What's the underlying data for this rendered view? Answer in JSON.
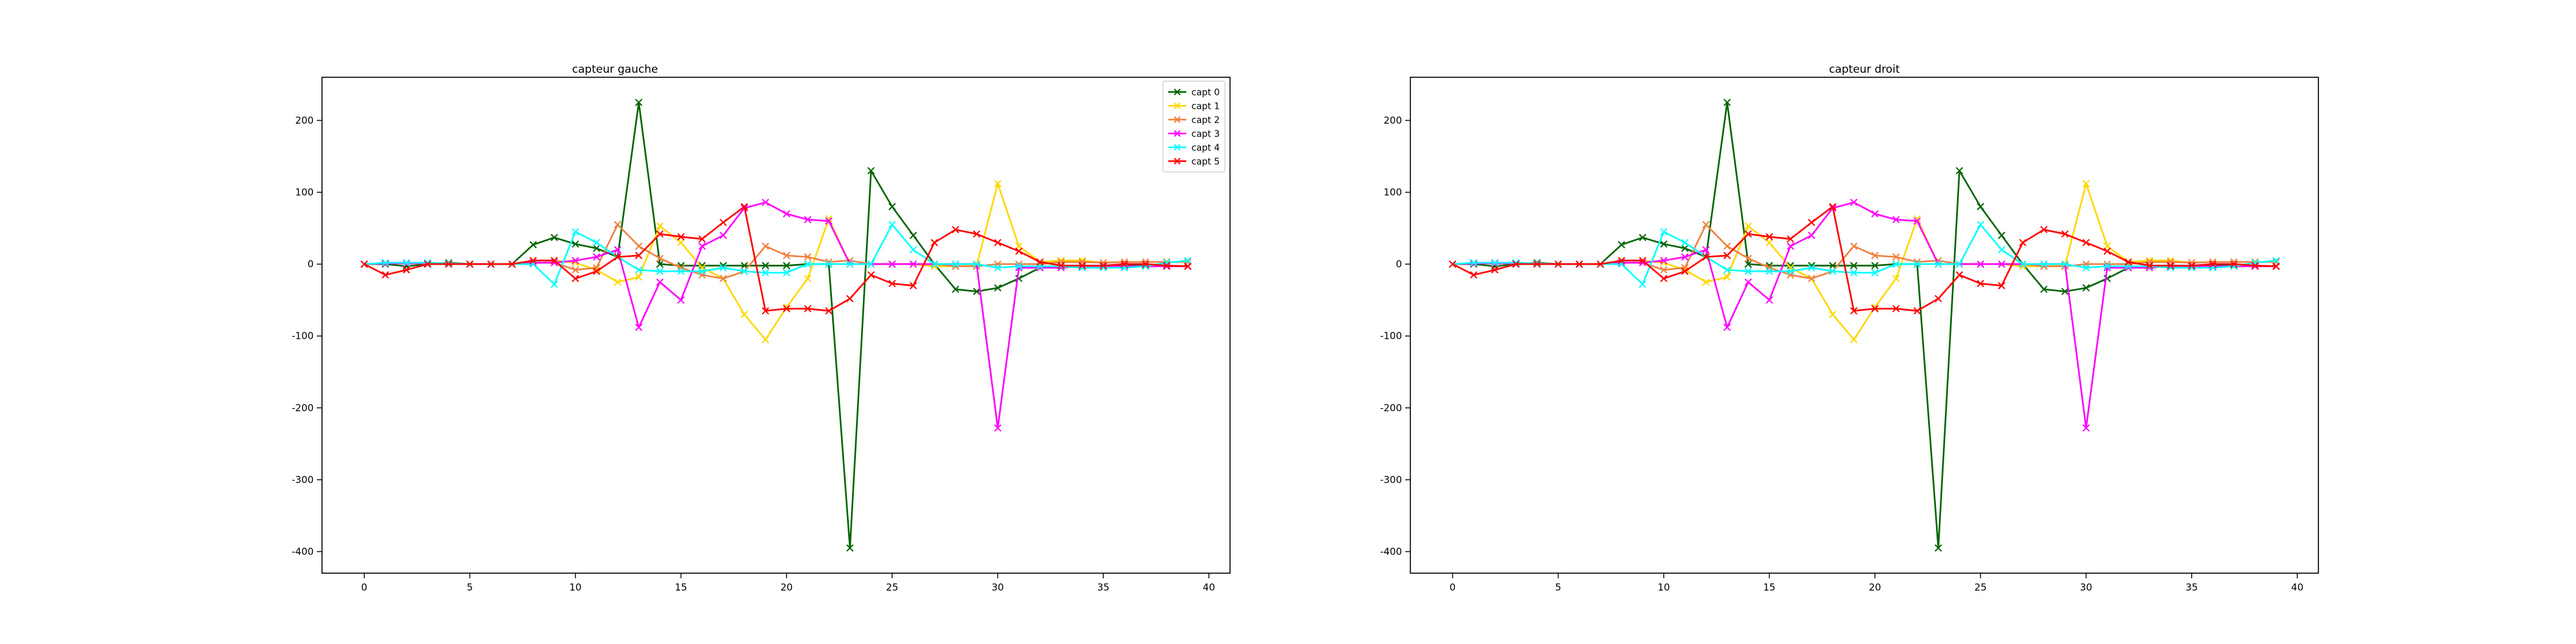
{
  "chart_data": [
    {
      "type": "line",
      "title": "capteur gauche",
      "xlabel": "",
      "ylabel": "",
      "xlim": [
        -2,
        41
      ],
      "ylim": [
        -430,
        260
      ],
      "x_ticks": [
        0,
        5,
        10,
        15,
        20,
        25,
        30,
        35,
        40
      ],
      "y_ticks": [
        -400,
        -300,
        -200,
        -100,
        0,
        100,
        200
      ],
      "grid": false,
      "legend": "top-right",
      "marker": "x",
      "x": [
        0,
        1,
        2,
        3,
        4,
        5,
        6,
        7,
        8,
        9,
        10,
        11,
        12,
        13,
        14,
        15,
        16,
        17,
        18,
        19,
        20,
        21,
        22,
        23,
        24,
        25,
        26,
        27,
        28,
        29,
        30,
        31,
        32,
        33,
        34,
        35,
        36,
        37,
        38,
        39
      ],
      "series": [
        {
          "name": "capt 0",
          "color": "#006400",
          "values": [
            0,
            0,
            -3,
            0,
            2,
            0,
            0,
            0,
            27,
            37,
            28,
            22,
            10,
            225,
            0,
            -2,
            -2,
            -2,
            -2,
            -2,
            -2,
            0,
            0,
            -395,
            130,
            80,
            40,
            0,
            -35,
            -38,
            -33,
            -20,
            -5,
            -3,
            -3,
            -2,
            -2,
            -1,
            -2,
            -3
          ]
        },
        {
          "name": "capt 1",
          "color": "#FFD700",
          "values": [
            0,
            1,
            1,
            1,
            1,
            0,
            0,
            0,
            5,
            5,
            2,
            -8,
            -25,
            -18,
            53,
            30,
            -5,
            -20,
            -70,
            -105,
            -60,
            -20,
            63,
            0,
            0,
            0,
            0,
            -3,
            -3,
            -2,
            112,
            25,
            3,
            5,
            5,
            2,
            3,
            3,
            3,
            3
          ]
        },
        {
          "name": "capt 2",
          "color": "#F08040",
          "values": [
            0,
            1,
            1,
            1,
            1,
            0,
            0,
            0,
            2,
            2,
            -8,
            -5,
            55,
            25,
            8,
            -5,
            -15,
            -20,
            -10,
            25,
            12,
            10,
            3,
            5,
            0,
            0,
            0,
            0,
            -3,
            -3,
            0,
            0,
            0,
            3,
            3,
            2,
            3,
            3,
            3,
            3
          ]
        },
        {
          "name": "capt 3",
          "color": "#FF00FF",
          "values": [
            0,
            1,
            1,
            1,
            1,
            0,
            0,
            0,
            2,
            2,
            5,
            10,
            20,
            -88,
            -25,
            -50,
            25,
            40,
            78,
            86,
            70,
            62,
            60,
            0,
            0,
            0,
            0,
            0,
            0,
            0,
            -228,
            -5,
            -5,
            -5,
            -3,
            -3,
            -3,
            -3,
            -3,
            -3
          ]
        },
        {
          "name": "capt 4",
          "color": "#00FFFF",
          "values": [
            0,
            2,
            2,
            2,
            1,
            0,
            0,
            0,
            0,
            -28,
            45,
            30,
            10,
            -8,
            -10,
            -10,
            -10,
            -5,
            -10,
            -12,
            -12,
            0,
            0,
            0,
            0,
            55,
            20,
            0,
            0,
            0,
            -5,
            -3,
            -3,
            -3,
            -5,
            -5,
            -5,
            -3,
            2,
            5
          ]
        },
        {
          "name": "capt 5",
          "color": "#FF0000",
          "values": [
            0,
            -15,
            -8,
            0,
            0,
            0,
            0,
            0,
            5,
            5,
            -20,
            -10,
            10,
            12,
            42,
            38,
            35,
            58,
            80,
            -65,
            -62,
            -62,
            -65,
            -48,
            -15,
            -27,
            -30,
            30,
            48,
            42,
            30,
            18,
            3,
            -2,
            -2,
            -2,
            0,
            0,
            -2,
            -3
          ]
        }
      ]
    },
    {
      "type": "line",
      "title": "capteur droit",
      "xlabel": "",
      "ylabel": "",
      "xlim": [
        -2,
        41
      ],
      "ylim": [
        -430,
        260
      ],
      "x_ticks": [
        0,
        5,
        10,
        15,
        20,
        25,
        30,
        35,
        40
      ],
      "y_ticks": [
        -400,
        -300,
        -200,
        -100,
        0,
        100,
        200
      ],
      "grid": false,
      "legend": "none",
      "marker": "x",
      "x": [
        0,
        1,
        2,
        3,
        4,
        5,
        6,
        7,
        8,
        9,
        10,
        11,
        12,
        13,
        14,
        15,
        16,
        17,
        18,
        19,
        20,
        21,
        22,
        23,
        24,
        25,
        26,
        27,
        28,
        29,
        30,
        31,
        32,
        33,
        34,
        35,
        36,
        37,
        38,
        39
      ],
      "series": [
        {
          "name": "capt 0",
          "color": "#006400",
          "values": [
            0,
            0,
            -3,
            0,
            2,
            0,
            0,
            0,
            27,
            37,
            28,
            22,
            10,
            225,
            0,
            -2,
            -2,
            -2,
            -2,
            -2,
            -2,
            0,
            0,
            -395,
            130,
            80,
            40,
            0,
            -35,
            -38,
            -33,
            -20,
            -5,
            -3,
            -3,
            -2,
            -2,
            -1,
            -2,
            -3
          ]
        },
        {
          "name": "capt 1",
          "color": "#FFD700",
          "values": [
            0,
            1,
            1,
            1,
            1,
            0,
            0,
            0,
            5,
            5,
            2,
            -8,
            -25,
            -18,
            53,
            30,
            -5,
            -20,
            -70,
            -105,
            -60,
            -20,
            63,
            0,
            0,
            0,
            0,
            -3,
            -3,
            -2,
            112,
            25,
            3,
            5,
            5,
            2,
            3,
            3,
            3,
            3
          ]
        },
        {
          "name": "capt 2",
          "color": "#F08040",
          "values": [
            0,
            1,
            1,
            1,
            1,
            0,
            0,
            0,
            2,
            2,
            -8,
            -5,
            55,
            25,
            8,
            -5,
            -15,
            -20,
            -10,
            25,
            12,
            10,
            3,
            5,
            0,
            0,
            0,
            0,
            -3,
            -3,
            0,
            0,
            0,
            3,
            3,
            2,
            3,
            3,
            3,
            3
          ]
        },
        {
          "name": "capt 3",
          "color": "#FF00FF",
          "values": [
            0,
            1,
            1,
            1,
            1,
            0,
            0,
            0,
            2,
            2,
            5,
            10,
            20,
            -88,
            -25,
            -50,
            25,
            40,
            78,
            86,
            70,
            62,
            60,
            0,
            0,
            0,
            0,
            0,
            0,
            0,
            -228,
            -5,
            -5,
            -5,
            -3,
            -3,
            -3,
            -3,
            -3,
            -3
          ]
        },
        {
          "name": "capt 4",
          "color": "#00FFFF",
          "values": [
            0,
            2,
            2,
            2,
            1,
            0,
            0,
            0,
            0,
            -28,
            45,
            30,
            10,
            -8,
            -10,
            -10,
            -10,
            -5,
            -10,
            -12,
            -12,
            0,
            0,
            0,
            0,
            55,
            20,
            0,
            0,
            0,
            -5,
            -3,
            -3,
            -3,
            -5,
            -5,
            -5,
            -3,
            2,
            5
          ]
        },
        {
          "name": "capt 5",
          "color": "#FF0000",
          "values": [
            0,
            -15,
            -8,
            0,
            0,
            0,
            0,
            0,
            5,
            5,
            -20,
            -10,
            10,
            12,
            42,
            38,
            35,
            58,
            80,
            -65,
            -62,
            -62,
            -65,
            -48,
            -15,
            -27,
            -30,
            30,
            48,
            42,
            30,
            18,
            3,
            -2,
            -2,
            -2,
            0,
            0,
            -2,
            -3
          ]
        }
      ]
    }
  ]
}
